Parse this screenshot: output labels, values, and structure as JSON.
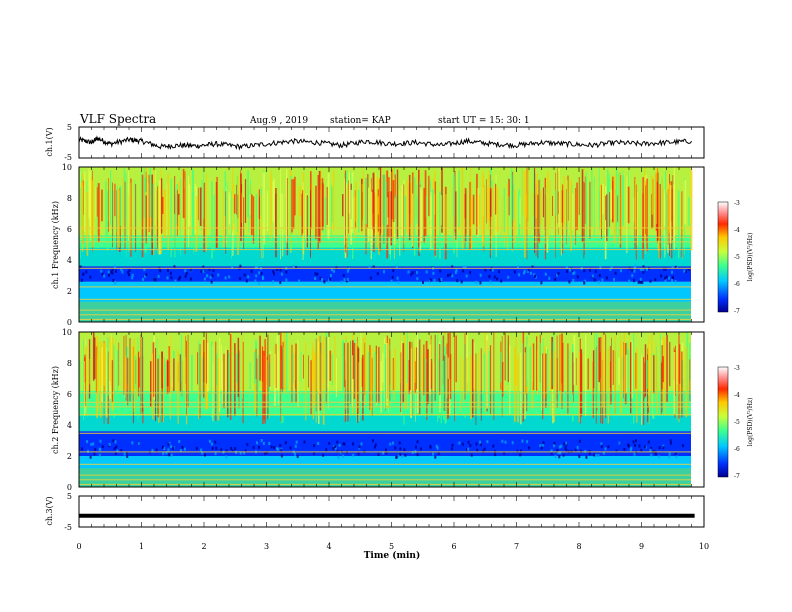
{
  "header": {
    "title": "VLF Spectra",
    "date": "Aug.9 , 2019",
    "station": "station= KAP",
    "start": "start UT = 15: 30: 1"
  },
  "colors": {
    "axis": "#000000",
    "spectrogram_background": "#9bdc3c",
    "noise_line": "#e8d23a",
    "colormap": [
      "#000090",
      "#0030ff",
      "#00c8ff",
      "#3cff90",
      "#c8ff3c",
      "#ffc800",
      "#ff2a00",
      "#ff8c8c",
      "#ffffff"
    ]
  },
  "chart_data": [
    {
      "type": "line",
      "panel": "ch1-waveform",
      "ylabel": "ch.1(V)",
      "ylim": [
        -5,
        5
      ],
      "yticks": [
        "5",
        "-5"
      ],
      "x": [
        0.0,
        0.2,
        0.3,
        0.5,
        0.8,
        1.0,
        1.3,
        1.6,
        1.9,
        2.2,
        2.6,
        3.0,
        3.4,
        3.8,
        4.2,
        4.6,
        5.0,
        5.4,
        5.8,
        6.2,
        6.6,
        7.0,
        7.4,
        7.8,
        8.2,
        8.6,
        9.0,
        9.4,
        9.8
      ],
      "values": [
        1.0,
        0.0,
        1.5,
        -0.5,
        1.0,
        0.5,
        -1.5,
        -1.0,
        -1.2,
        -0.5,
        -1.5,
        -0.5,
        0.5,
        0.0,
        -1.0,
        0.5,
        -0.5,
        0.0,
        -1.0,
        0.5,
        -0.5,
        -1.0,
        0.0,
        -0.5,
        -1.0,
        0.0,
        -0.5,
        0.0,
        0.5
      ]
    },
    {
      "type": "heatmap",
      "panel": "ch1-spectrogram",
      "ylabel": "ch.1 Frequency (kHz)",
      "ylim": [
        0,
        10
      ],
      "yticks": [
        "0",
        "2",
        "4",
        "6",
        "8",
        "10"
      ],
      "colorbar": {
        "label": "log(PSD)(V²/Hz)",
        "range": [
          -7,
          -3
        ],
        "ticks": [
          "-3",
          "-4",
          "-5",
          "-6",
          "-7"
        ]
      }
    },
    {
      "type": "heatmap",
      "panel": "ch2-spectrogram",
      "ylabel": "ch.2 Frequency (kHz)",
      "ylim": [
        0,
        10
      ],
      "yticks": [
        "0",
        "2",
        "4",
        "6",
        "8",
        "10"
      ],
      "colorbar": {
        "label": "log(PSD)(V²/Hz)",
        "range": [
          -7,
          -3
        ],
        "ticks": [
          "-3",
          "-4",
          "-5",
          "-6",
          "-7"
        ]
      }
    },
    {
      "type": "line",
      "panel": "ch3-waveform",
      "ylabel": "ch.3(V)",
      "ylim": [
        -5,
        5
      ],
      "yticks": [
        "5",
        "-5"
      ],
      "x": [
        0,
        9.85
      ],
      "values": [
        -1.5,
        -1.5
      ]
    }
  ],
  "xaxis": {
    "label": "Time (min)",
    "range": [
      0,
      10
    ],
    "ticks": [
      "0",
      "1",
      "2",
      "3",
      "4",
      "5",
      "6",
      "7",
      "8",
      "9",
      "10"
    ]
  }
}
